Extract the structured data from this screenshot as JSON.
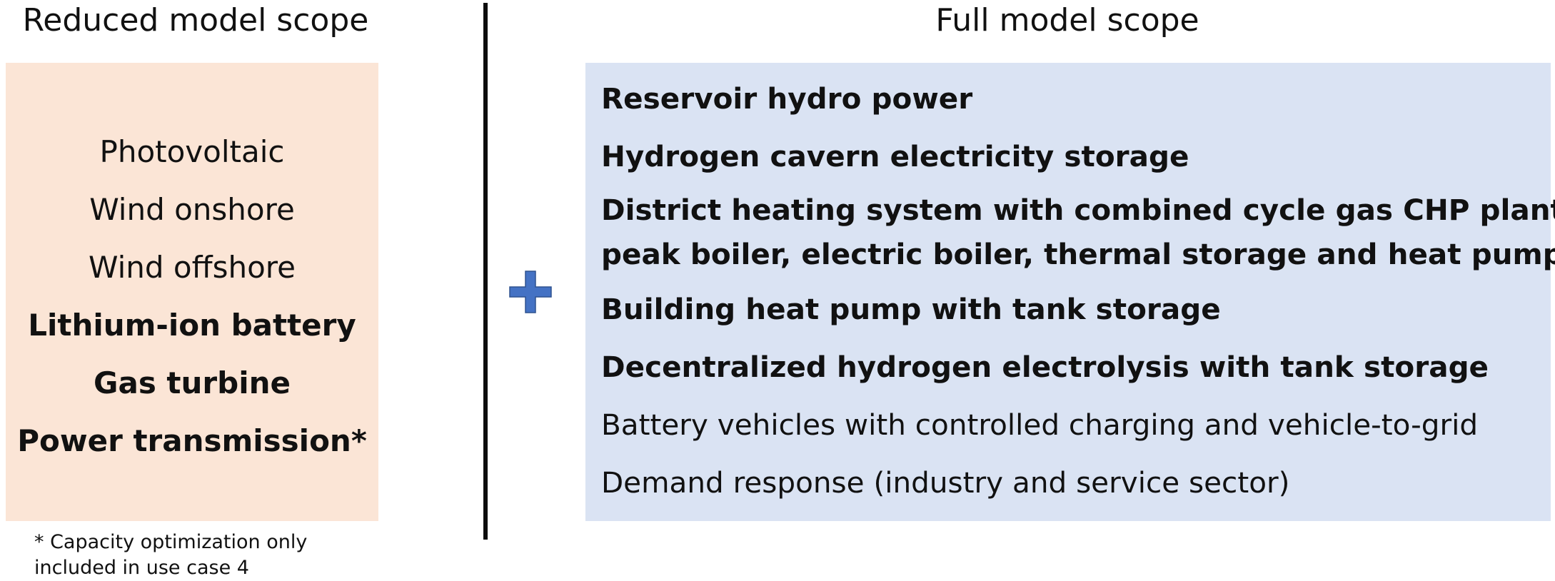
{
  "left": {
    "heading": "Reduced model scope",
    "items": [
      {
        "label": "Photovoltaic",
        "bold": false
      },
      {
        "label": "Wind onshore",
        "bold": false
      },
      {
        "label": "Wind offshore",
        "bold": false
      },
      {
        "label": "Lithium-ion battery",
        "bold": true
      },
      {
        "label": "Gas turbine",
        "bold": true
      },
      {
        "label": "Power transmission*",
        "bold": true
      }
    ],
    "footnote_line1": "* Capacity optimization only",
    "footnote_line2": "included in use case 4"
  },
  "right": {
    "heading": "Full model scope",
    "items": [
      {
        "label": "Reservoir  hydro power",
        "bold": true
      },
      {
        "label": "Hydrogen cavern electricity storage",
        "bold": true
      },
      {
        "label_line1": "District heating system with combined cycle gas CHP plant,",
        "label_line2": "peak boiler, electric boiler, thermal storage and heat pump",
        "bold": true
      },
      {
        "label": "Building heat pump with tank storage",
        "bold": true
      },
      {
        "label": "Decentralized hydrogen electrolysis with tank storage",
        "bold": true
      },
      {
        "label": "Battery vehicles with controlled charging and vehicle-to-grid",
        "bold": false
      },
      {
        "label": "Demand response (industry and service sector)",
        "bold": false
      }
    ]
  },
  "colors": {
    "reduced_box": "#fbe5d6",
    "full_box": "#dae3f3",
    "plus": "#4472c4",
    "divider": "#0d0d0d"
  },
  "icons": {
    "plus": "plus-icon"
  }
}
